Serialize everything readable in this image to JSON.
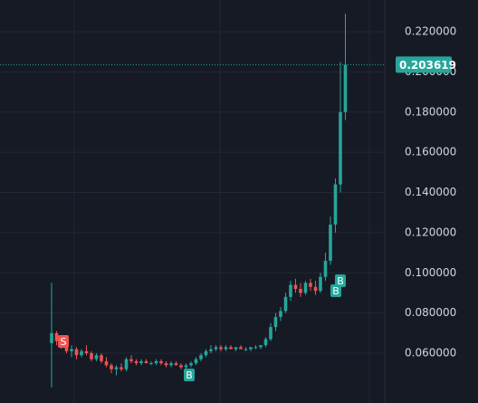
{
  "chart_data": {
    "type": "candlestick",
    "open": [
      0.065,
      0.07,
      0.066,
      0.063,
      0.061,
      0.062,
      0.059,
      0.061,
      0.06,
      0.057,
      0.059,
      0.056,
      0.054,
      0.052,
      0.053,
      0.052,
      0.057,
      0.056,
      0.055,
      0.056,
      0.055,
      0.055,
      0.056,
      0.055,
      0.054,
      0.055,
      0.054,
      0.053,
      0.054,
      0.055,
      0.057,
      0.059,
      0.061,
      0.062,
      0.063,
      0.062,
      0.063,
      0.062,
      0.063,
      0.062,
      0.062,
      0.063,
      0.063,
      0.064,
      0.067,
      0.073,
      0.078,
      0.081,
      0.088,
      0.094,
      0.092,
      0.09,
      0.095,
      0.093,
      0.091,
      0.098,
      0.106,
      0.124,
      0.144,
      0.18
    ],
    "high": [
      0.095,
      0.071,
      0.068,
      0.066,
      0.064,
      0.063,
      0.062,
      0.064,
      0.061,
      0.06,
      0.06,
      0.058,
      0.055,
      0.054,
      0.055,
      0.058,
      0.059,
      0.057,
      0.057,
      0.057,
      0.056,
      0.057,
      0.057,
      0.056,
      0.056,
      0.056,
      0.055,
      0.055,
      0.056,
      0.058,
      0.06,
      0.062,
      0.064,
      0.064,
      0.064,
      0.064,
      0.064,
      0.063,
      0.064,
      0.063,
      0.063,
      0.064,
      0.064,
      0.068,
      0.075,
      0.08,
      0.083,
      0.09,
      0.096,
      0.097,
      0.095,
      0.096,
      0.097,
      0.096,
      0.1,
      0.11,
      0.128,
      0.147,
      0.205,
      0.229
    ],
    "low": [
      0.043,
      0.064,
      0.062,
      0.06,
      0.058,
      0.057,
      0.058,
      0.059,
      0.056,
      0.056,
      0.055,
      0.053,
      0.05,
      0.049,
      0.051,
      0.051,
      0.055,
      0.054,
      0.054,
      0.055,
      0.054,
      0.054,
      0.054,
      0.053,
      0.053,
      0.054,
      0.052,
      0.052,
      0.053,
      0.054,
      0.056,
      0.058,
      0.06,
      0.061,
      0.061,
      0.061,
      0.062,
      0.061,
      0.062,
      0.061,
      0.061,
      0.062,
      0.062,
      0.063,
      0.066,
      0.071,
      0.076,
      0.08,
      0.086,
      0.09,
      0.088,
      0.089,
      0.091,
      0.089,
      0.09,
      0.096,
      0.104,
      0.12,
      0.14,
      0.176
    ],
    "close": [
      0.07,
      0.066,
      0.063,
      0.061,
      0.062,
      0.059,
      0.061,
      0.06,
      0.057,
      0.059,
      0.056,
      0.054,
      0.052,
      0.053,
      0.052,
      0.057,
      0.056,
      0.055,
      0.056,
      0.055,
      0.055,
      0.056,
      0.055,
      0.054,
      0.055,
      0.054,
      0.053,
      0.054,
      0.055,
      0.057,
      0.059,
      0.061,
      0.062,
      0.063,
      0.062,
      0.063,
      0.062,
      0.063,
      0.062,
      0.062,
      0.063,
      0.063,
      0.064,
      0.067,
      0.073,
      0.078,
      0.081,
      0.088,
      0.094,
      0.092,
      0.09,
      0.095,
      0.093,
      0.091,
      0.098,
      0.106,
      0.124,
      0.144,
      0.18,
      0.203619
    ],
    "up_color": "#26a69a",
    "down_color": "#ef5350",
    "ylim": [
      0.0352,
      0.2358
    ],
    "yticks": [
      {
        "value": 0.06,
        "label": "0.060000"
      },
      {
        "value": 0.08,
        "label": "0.080000"
      },
      {
        "value": 0.1,
        "label": "0.100000"
      },
      {
        "value": 0.12,
        "label": "0.120000"
      },
      {
        "value": 0.14,
        "label": "0.140000"
      },
      {
        "value": 0.16,
        "label": "0.160000"
      },
      {
        "value": 0.18,
        "label": "0.180000"
      },
      {
        "value": 0.2,
        "label": "0.200000"
      },
      {
        "value": 0.22,
        "label": "0.220000"
      }
    ],
    "grid": true,
    "last_price": 0.203619,
    "markers": [
      "S",
      "B",
      "B",
      "B"
    ]
  }
}
